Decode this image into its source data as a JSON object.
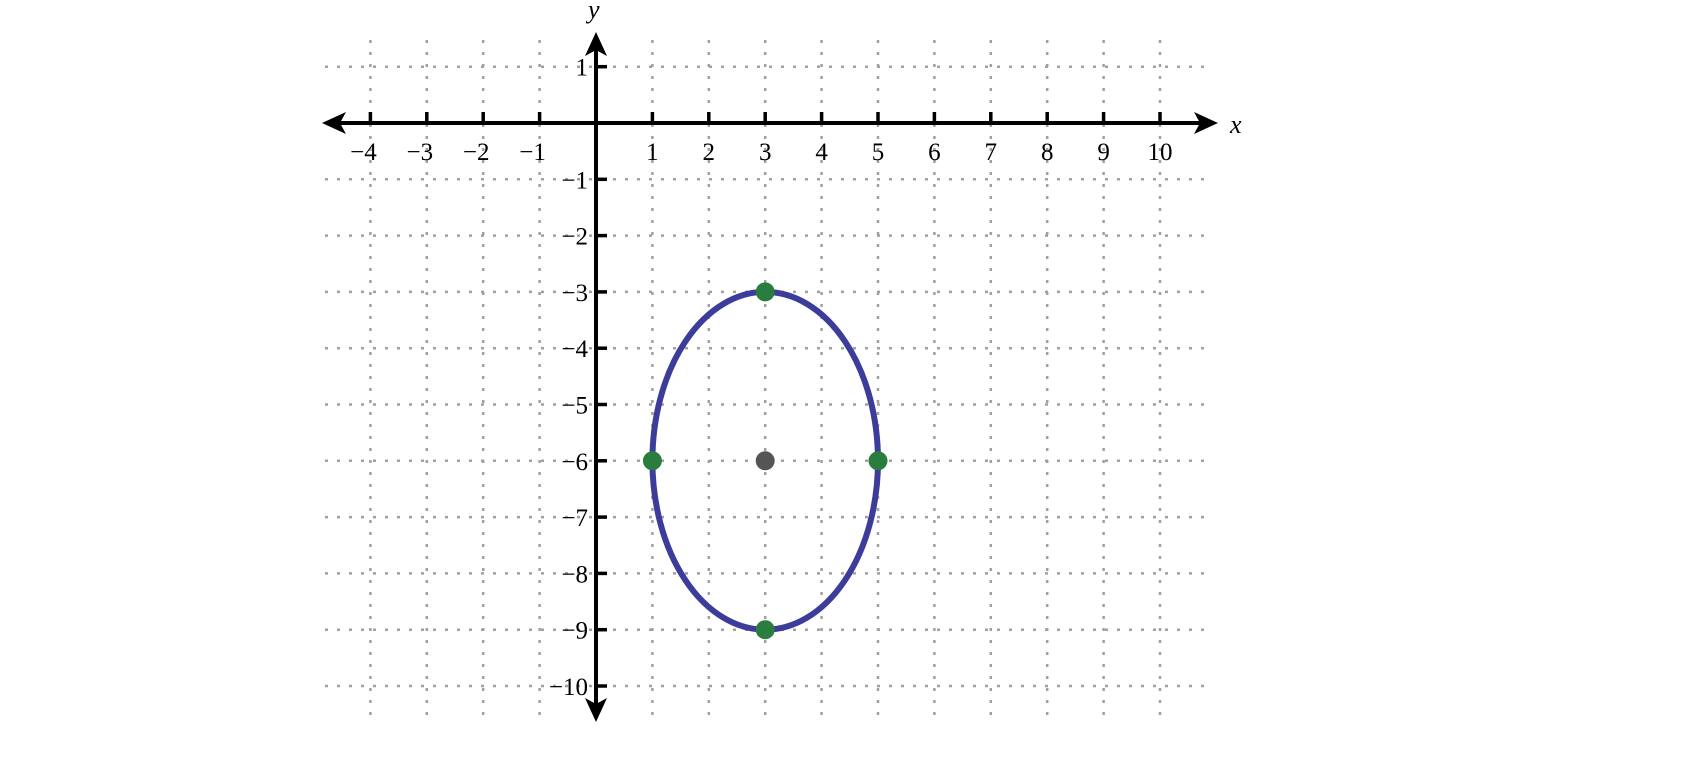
{
  "chart_data": {
    "type": "scatter",
    "title": "",
    "xlabel": "x",
    "ylabel": "y",
    "xlim": [
      -4,
      10
    ],
    "ylim": [
      -10,
      1
    ],
    "x_ticks": [
      -4,
      -3,
      -2,
      -1,
      1,
      2,
      3,
      4,
      5,
      6,
      7,
      8,
      9,
      10
    ],
    "y_ticks": [
      1,
      -1,
      -2,
      -3,
      -4,
      -5,
      -6,
      -7,
      -8,
      -9,
      -10
    ],
    "grid": true,
    "ellipse": {
      "center": [
        3,
        -6
      ],
      "rx": 2,
      "ry": 3,
      "color": "#3c3c9a"
    },
    "vertices": [
      [
        3,
        -3
      ],
      [
        3,
        -9
      ],
      [
        1,
        -6
      ],
      [
        5,
        -6
      ]
    ],
    "vertex_color": "#2a7d3e",
    "center_point": [
      3,
      -6
    ],
    "center_color": "#555555"
  }
}
